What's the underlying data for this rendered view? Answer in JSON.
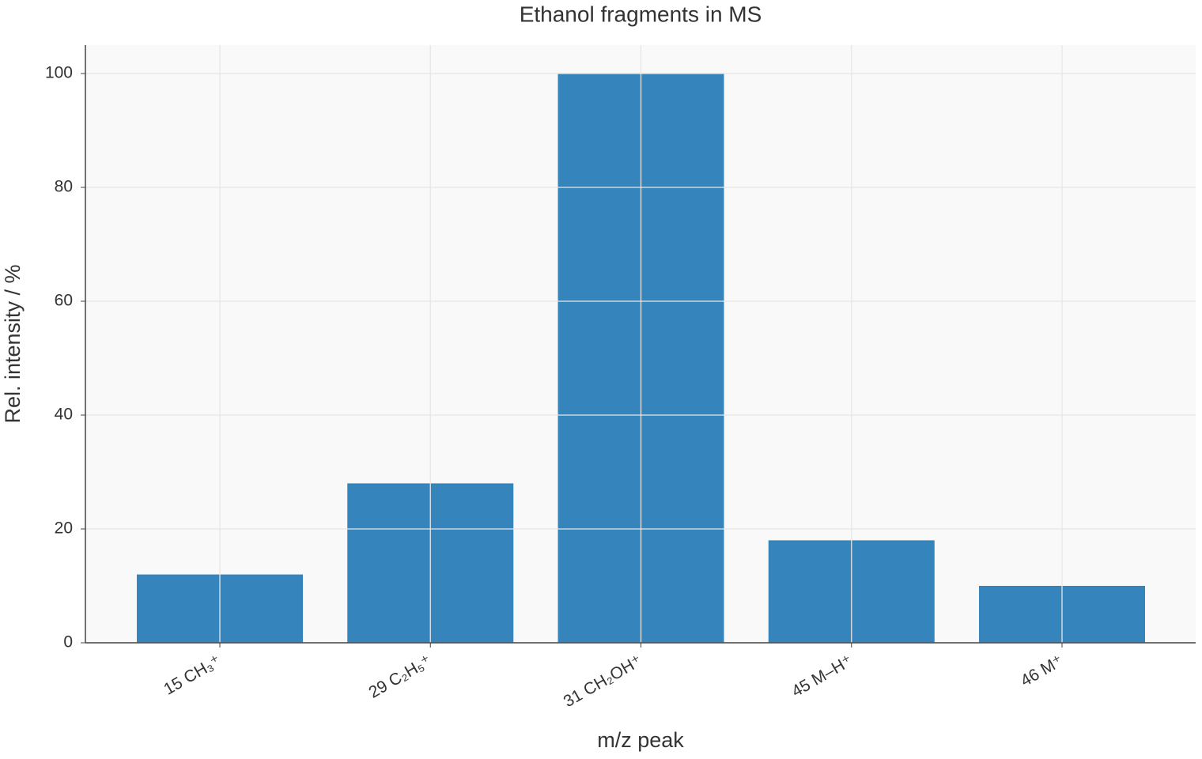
{
  "chart_data": {
    "type": "bar",
    "title": "Ethanol fragments in MS",
    "x_label": "m/z peak",
    "y_label": "Rel. intensity / %",
    "categories": [
      "15 CH₃⁺",
      "29 C₂H₅⁺",
      "31 CH₂OH⁺",
      "45 M–H⁺",
      "46 M⁺"
    ],
    "values": [
      12,
      28,
      100,
      18,
      10
    ],
    "color": "#3584bb",
    "ylim": [
      0,
      105
    ],
    "yticks": [
      0,
      20,
      40,
      60,
      80,
      100
    ],
    "grid": true
  }
}
